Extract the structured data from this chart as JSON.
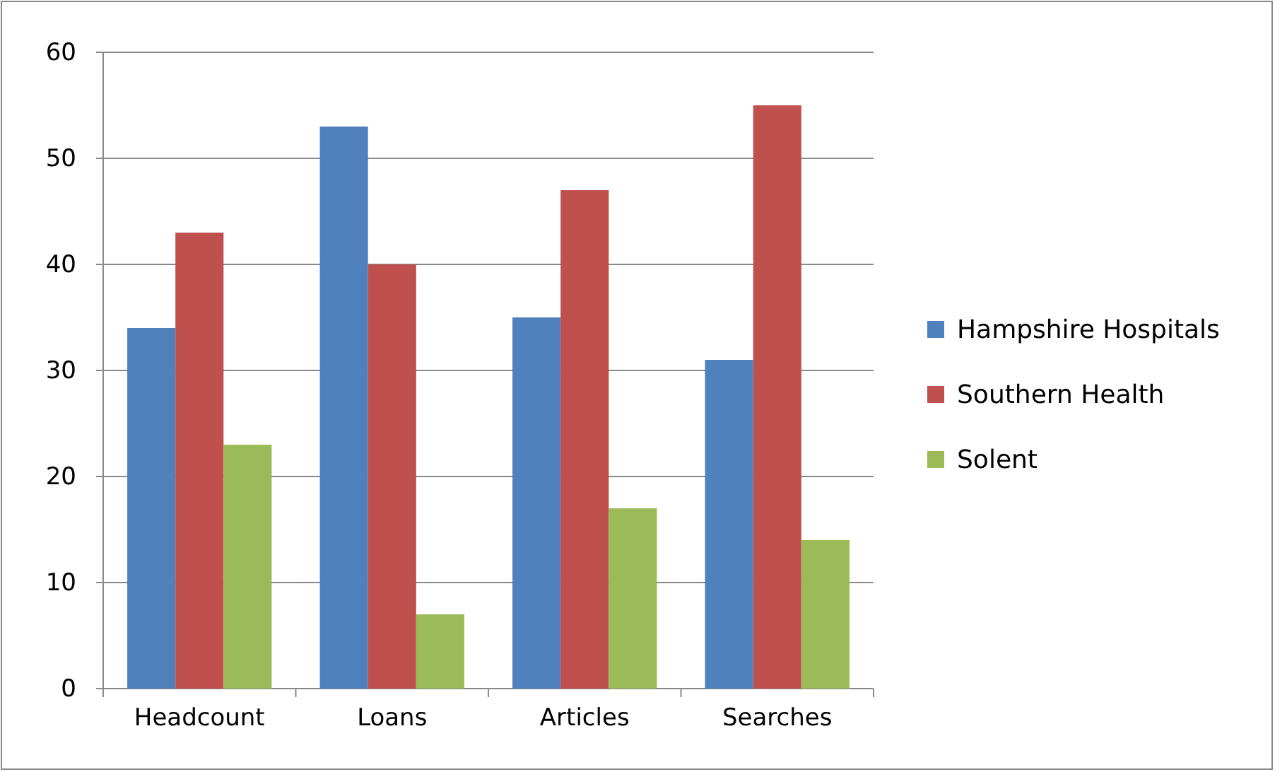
{
  "chart_data": {
    "type": "bar",
    "categories": [
      "Headcount",
      "Loans",
      "Articles",
      "Searches"
    ],
    "series": [
      {
        "name": "Hampshire Hospitals",
        "color": "#4f81bd",
        "values": [
          34,
          53,
          35,
          31
        ]
      },
      {
        "name": "Southern Health",
        "color": "#c0504d",
        "values": [
          43,
          40,
          47,
          55
        ]
      },
      {
        "name": "Solent",
        "color": "#9bbb59",
        "values": [
          23,
          7,
          17,
          14
        ]
      }
    ],
    "ylim": [
      0,
      60
    ],
    "yticks": [
      0,
      10,
      20,
      30,
      40,
      50,
      60
    ],
    "grid": "y",
    "legend": "right"
  }
}
